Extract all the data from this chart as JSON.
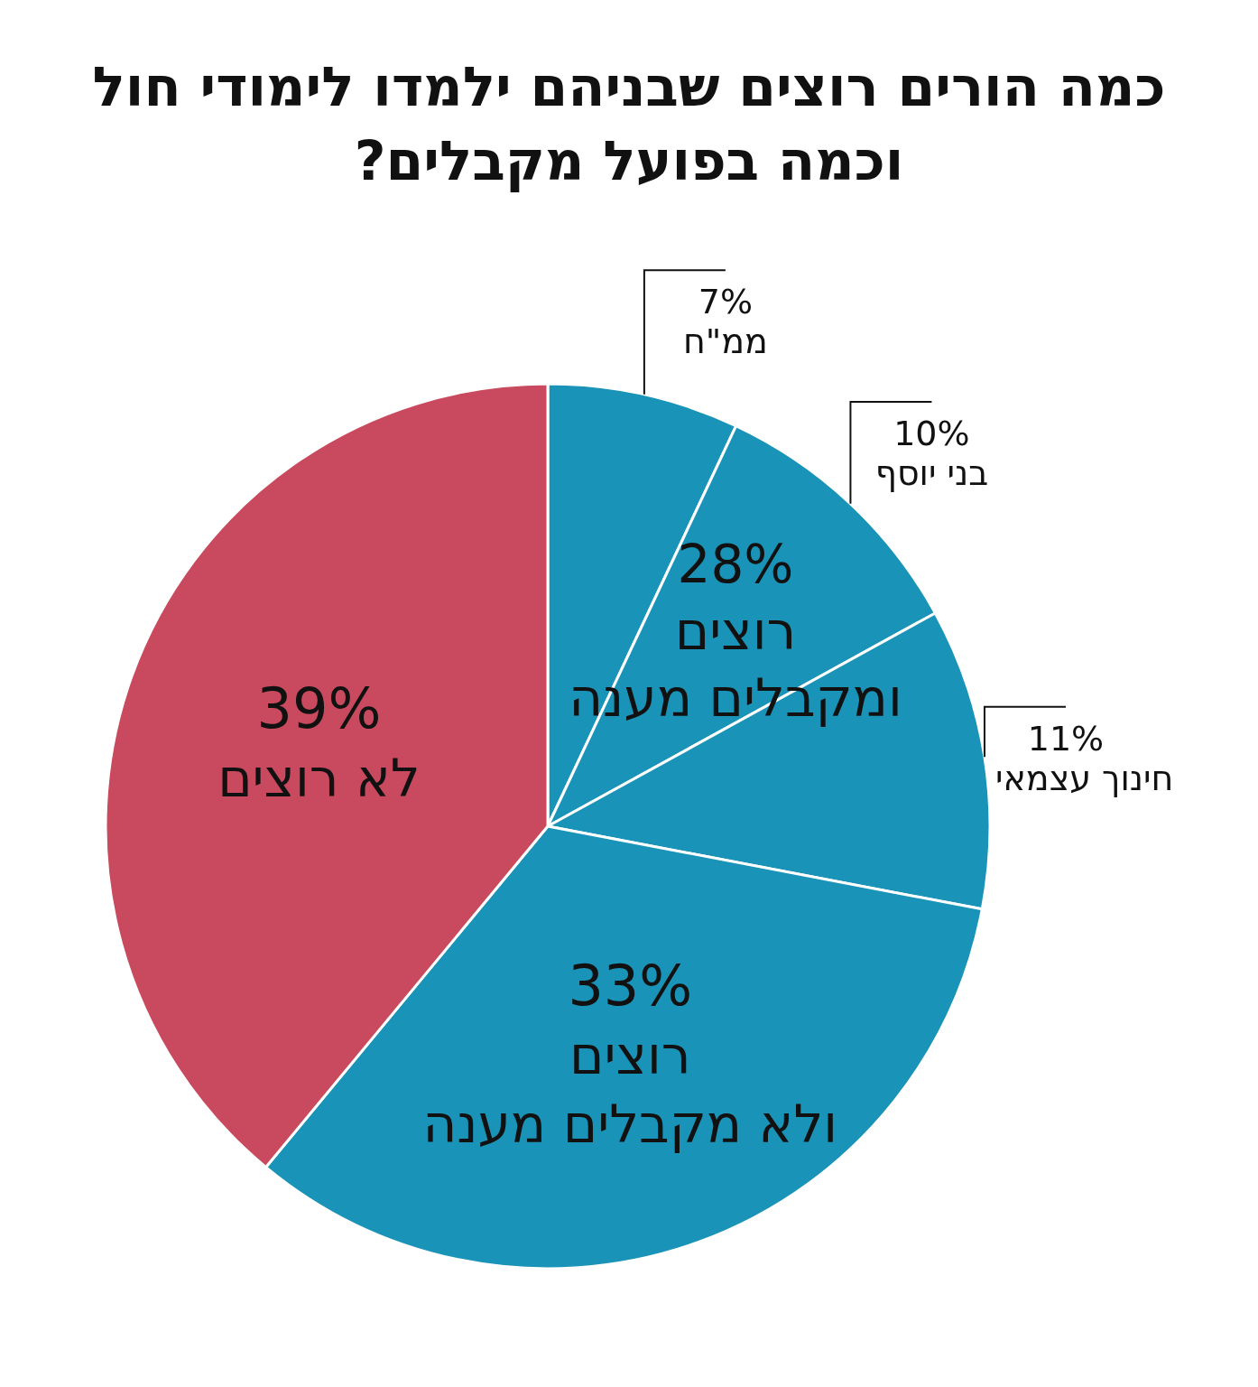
{
  "chart_data": {
    "type": "pie",
    "title": "כמה הורים רוצים שבניהם ילמדו לימודי חול וכמה בפועל מקבלים?",
    "categories": [
      "ממ\"ח",
      "בני יוסף",
      "חינוך עצמאי",
      "רוצים ולא מקבלים מענה",
      "לא רוצים"
    ],
    "values": [
      7,
      10,
      11,
      33,
      39
    ],
    "value_labels": [
      "7%",
      "10%",
      "11%",
      "33%",
      "39%"
    ],
    "colors": [
      "#1a93b8",
      "#1a93b8",
      "#1a93b8",
      "#1a93b8",
      "#c94a5e"
    ],
    "annotations": [
      "28% רוצים ומקבלים מענה"
    ]
  }
}
